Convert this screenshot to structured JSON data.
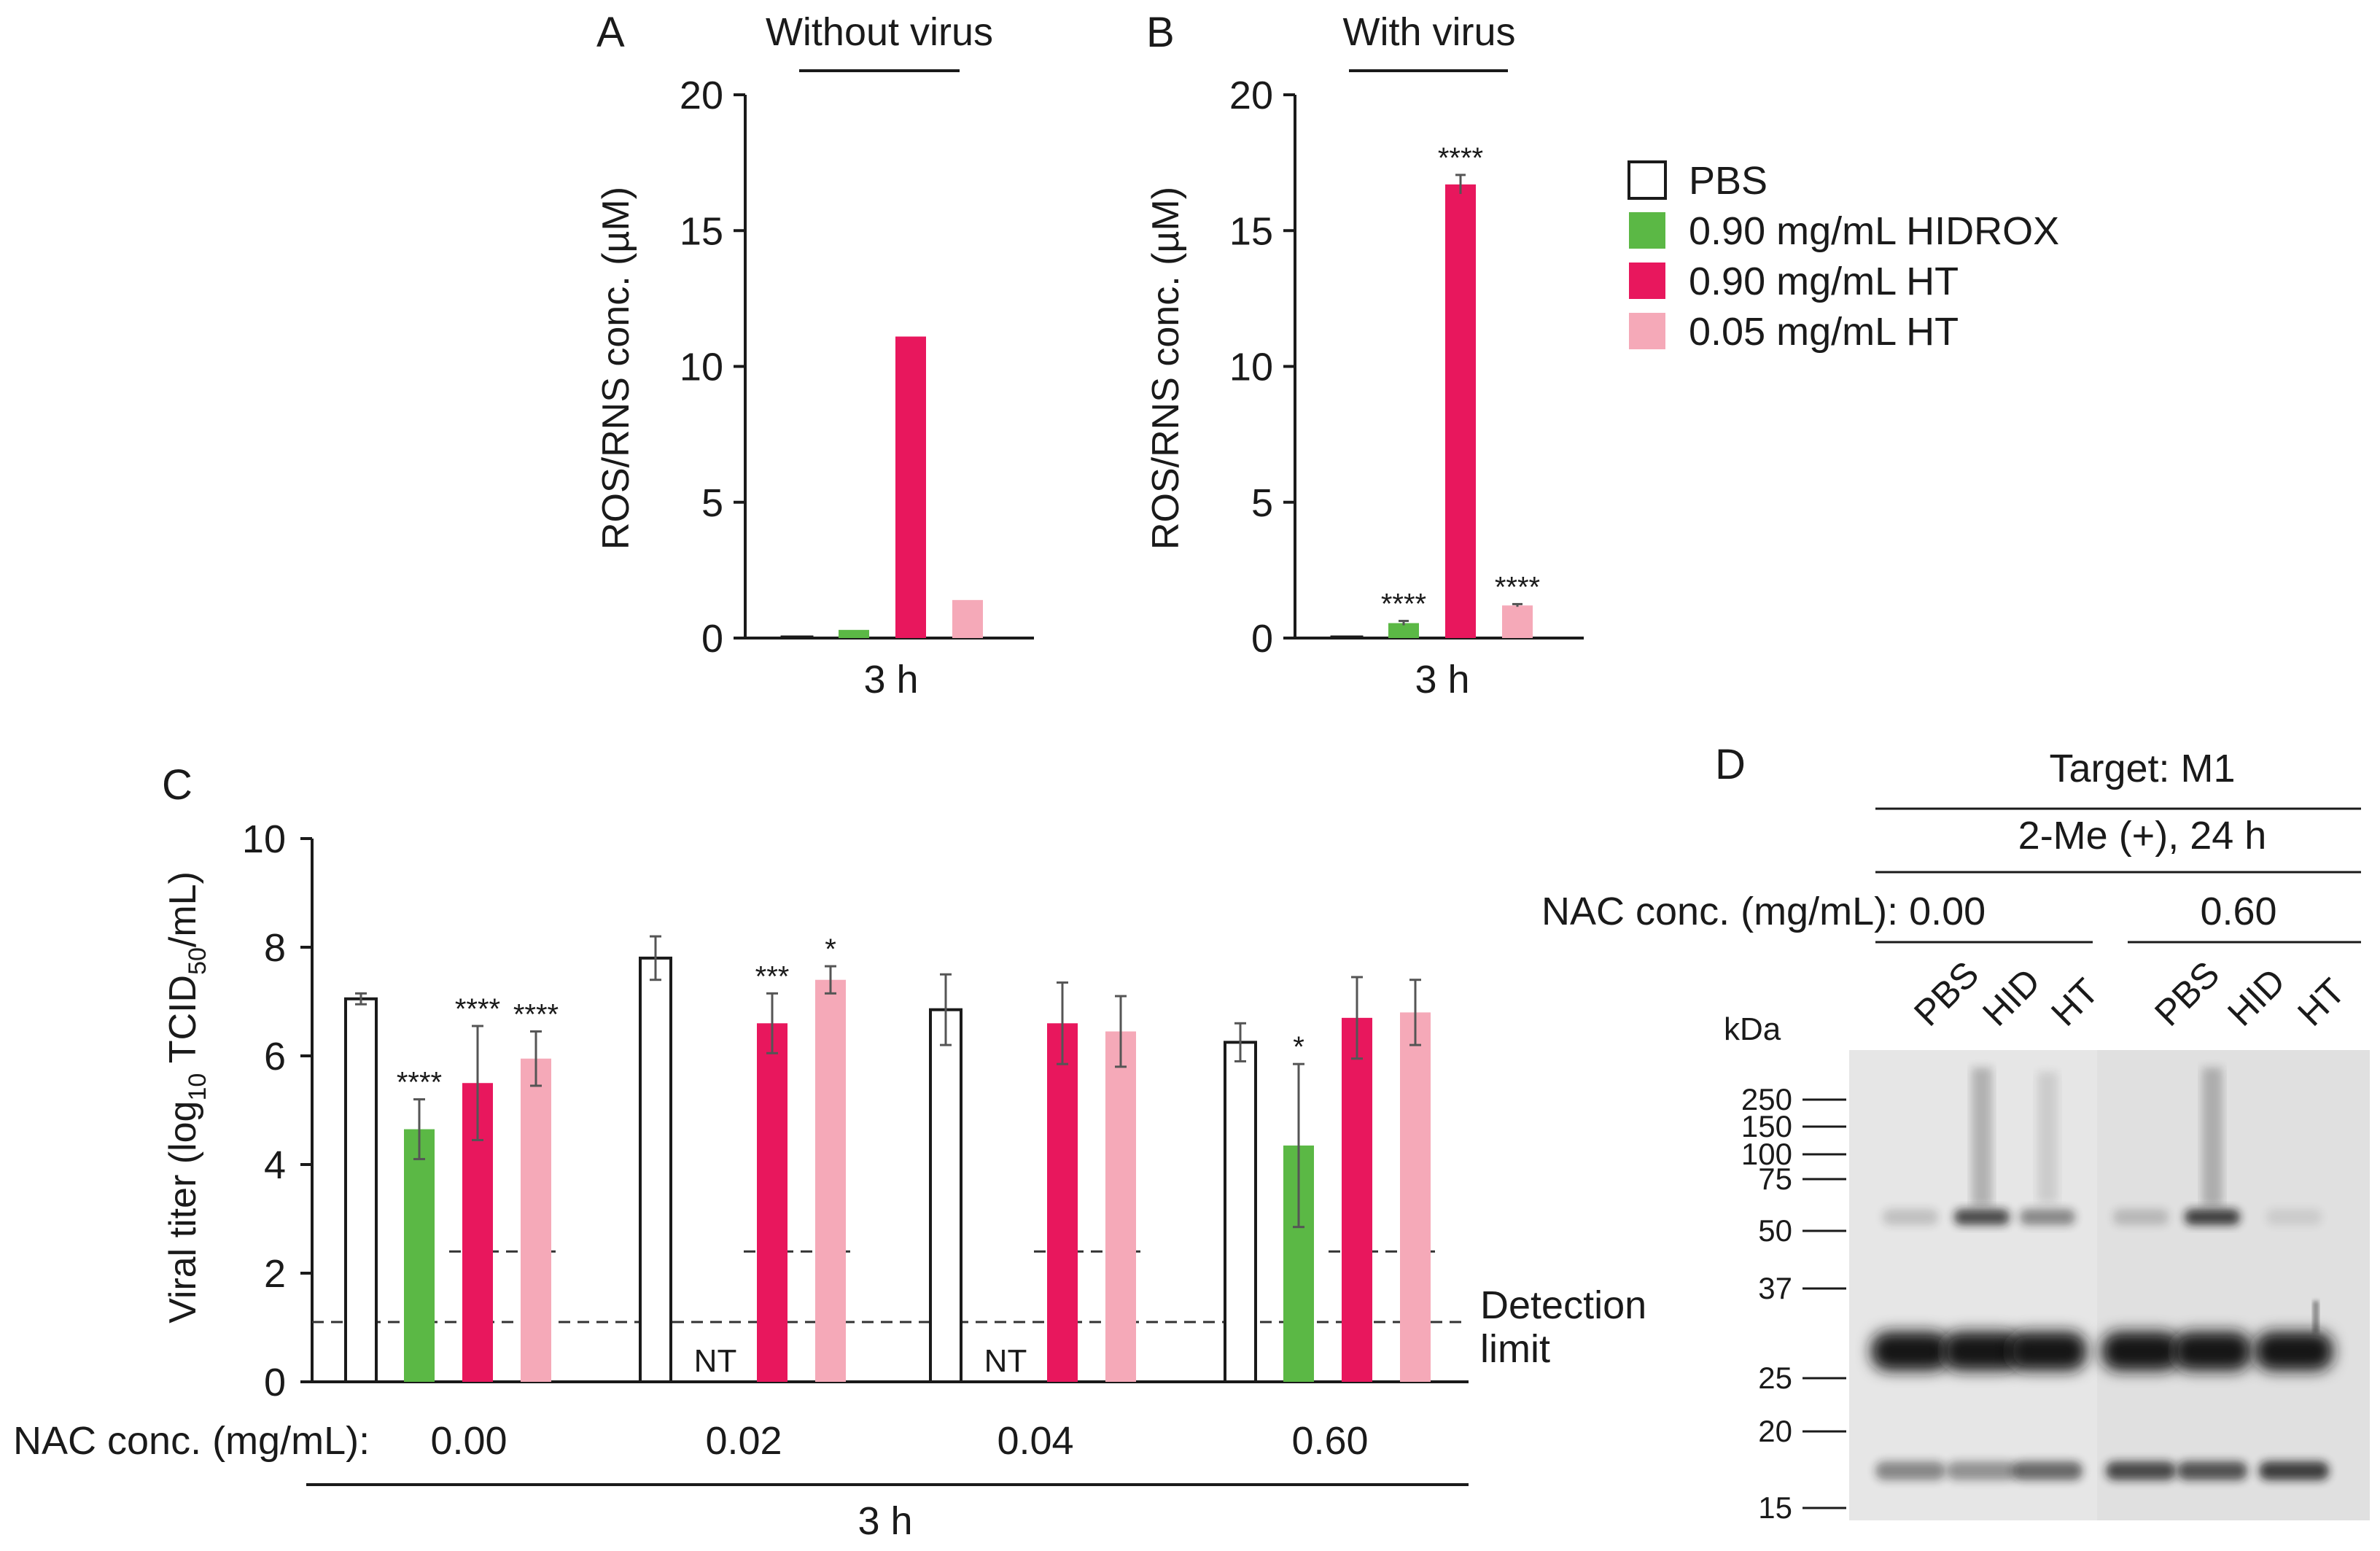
{
  "colors": {
    "pbs": "#ffffff",
    "hidrox": "#5bb845",
    "ht_high": "#e8175d",
    "ht_low": "#f5a9b8",
    "axis": "#1a1a1a",
    "blot_band": "#161616"
  },
  "panels": {
    "a": {
      "letter": "A",
      "group_title": "Without virus"
    },
    "b": {
      "letter": "B",
      "group_title": "With virus"
    },
    "c": {
      "letter": "C"
    },
    "d": {
      "letter": "D"
    }
  },
  "legend": {
    "items": [
      {
        "key": "pbs",
        "label": "PBS"
      },
      {
        "key": "hidrox",
        "label": "0.90 mg/mL HIDROX"
      },
      {
        "key": "ht_high",
        "label": "0.90 mg/mL HT"
      },
      {
        "key": "ht_low",
        "label": "0.05 mg/mL HT"
      }
    ]
  },
  "chart_data": [
    {
      "id": "A",
      "type": "bar",
      "title": "Without virus",
      "ylabel": "ROS/RNS conc. (µM)",
      "xlabel": "3 h",
      "ylim": [
        0,
        20
      ],
      "yticks": [
        "0",
        "5",
        "10",
        "15",
        "20"
      ],
      "categories": [
        "PBS",
        "0.90 mg/mL HIDROX",
        "0.90 mg/mL HT",
        "0.05 mg/mL HT"
      ],
      "values": [
        0.05,
        0.3,
        11.1,
        1.4
      ],
      "errors": [
        0,
        0,
        0,
        0
      ],
      "annotations": [
        "",
        "",
        "",
        ""
      ]
    },
    {
      "id": "B",
      "type": "bar",
      "title": "With virus",
      "ylabel": "ROS/RNS conc. (µM)",
      "xlabel": "3 h",
      "ylim": [
        0,
        20
      ],
      "yticks": [
        "0",
        "5",
        "10",
        "15",
        "20"
      ],
      "categories": [
        "PBS",
        "0.90 mg/mL HIDROX",
        "0.90 mg/mL HT",
        "0.05 mg/mL HT"
      ],
      "values": [
        0.05,
        0.55,
        16.7,
        1.2
      ],
      "errors": [
        0,
        0.08,
        0.35,
        0.05
      ],
      "annotations": [
        "",
        "****",
        "****",
        "****"
      ]
    },
    {
      "id": "C",
      "type": "bar",
      "ylabel_main": "Viral titer (log",
      "ylabel_sub": "10",
      "ylabel_mid": " TCID",
      "ylabel_sub2": "50",
      "ylabel_end": "/mL)",
      "ylim": [
        0,
        10
      ],
      "yticks": [
        "0",
        "2",
        "4",
        "6",
        "8",
        "10"
      ],
      "nac_label": "NAC conc. (mg/mL):",
      "xlabel": "3 h",
      "detection_label": "Detection",
      "detection_label2": "limit",
      "detection_limit": 1.1,
      "nt_label": "NT",
      "groups": [
        {
          "nac": "0.00",
          "values": [
            7.05,
            4.65,
            5.5,
            5.95
          ],
          "errors": [
            0.1,
            0.55,
            1.05,
            0.5
          ],
          "annotations": [
            "",
            "****",
            "****",
            "****"
          ],
          "nt": [
            false,
            false,
            false,
            false
          ],
          "inner_limit": 2.4
        },
        {
          "nac": "0.02",
          "values": [
            7.8,
            null,
            6.6,
            7.4
          ],
          "errors": [
            0.4,
            0,
            0.55,
            0.25
          ],
          "annotations": [
            "",
            "",
            "***",
            "*"
          ],
          "nt": [
            false,
            true,
            false,
            false
          ],
          "inner_limit": 2.4
        },
        {
          "nac": "0.04",
          "values": [
            6.85,
            null,
            6.6,
            6.45
          ],
          "errors": [
            0.65,
            0,
            0.75,
            0.65
          ],
          "annotations": [
            "",
            "",
            "",
            ""
          ],
          "nt": [
            false,
            true,
            false,
            false
          ],
          "inner_limit": 2.4
        },
        {
          "nac": "0.60",
          "values": [
            6.25,
            4.35,
            6.7,
            6.8
          ],
          "errors": [
            0.35,
            1.5,
            0.75,
            0.6
          ],
          "annotations": [
            "",
            "*",
            "",
            ""
          ],
          "nt": [
            false,
            false,
            false,
            false
          ],
          "inner_limit": 2.4
        }
      ]
    },
    {
      "id": "D",
      "type": "western-blot",
      "target": "Target: M1",
      "condition": "2-Me (+), 24 h",
      "nac_label": "NAC conc. (mg/mL): 0.00",
      "nac_high": "0.60",
      "lanes": [
        "PBS",
        "HID",
        "HT",
        "PBS",
        "HID",
        "HT"
      ],
      "kda_label": "kDa",
      "markers": [
        250,
        150,
        100,
        75,
        50,
        37,
        25,
        20,
        15
      ]
    }
  ]
}
